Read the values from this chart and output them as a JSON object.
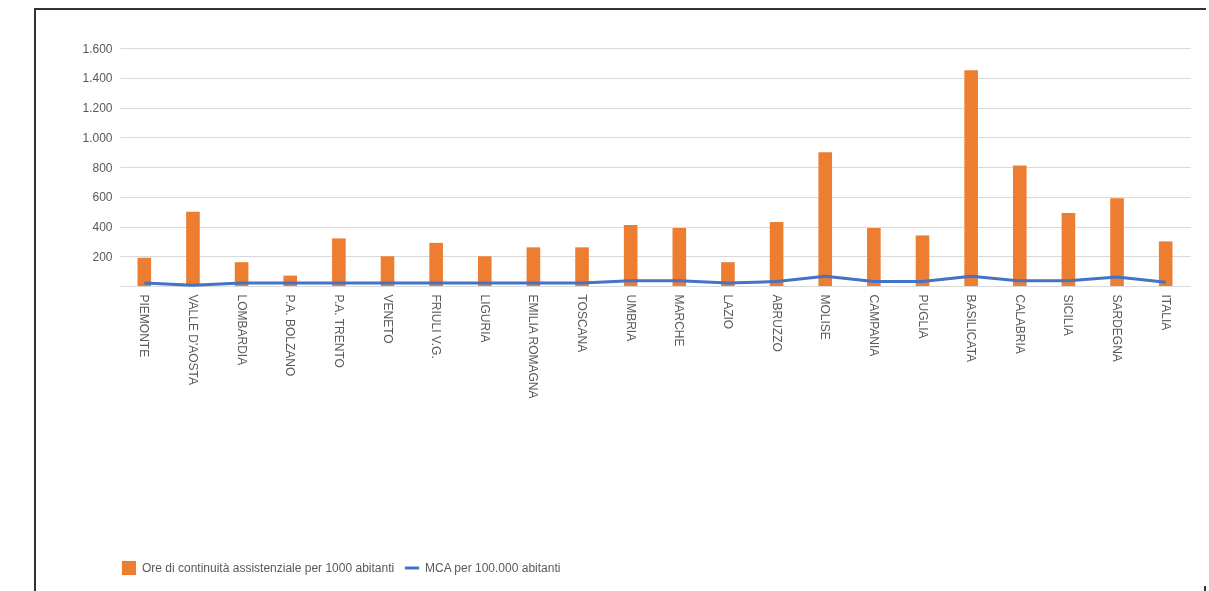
{
  "chart_data": {
    "type": "bar",
    "categories": [
      "PIEMONTE",
      "VALLE D'AOSTA",
      "LOMBARDIA",
      "P.A. BOLZANO",
      "P.A. TRENTO",
      "VENETO",
      "FRIULI V.G.",
      "LIGURIA",
      "EMILIA ROMAGNA",
      "TOSCANA",
      "UMBRIA",
      "MARCHE",
      "LAZIO",
      "ABRUZZO",
      "MOLISE",
      "CAMPANIA",
      "PUGLIA",
      "BASILICATA",
      "CALABRIA",
      "SICILIA",
      "SARDEGNA",
      "ITALIA"
    ],
    "series": [
      {
        "name": "Ore di continuità assistenziale per 1000 abitanti",
        "color": "#ed7d31",
        "values": [
          190,
          500,
          160,
          70,
          320,
          200,
          290,
          200,
          260,
          260,
          410,
          390,
          160,
          430,
          900,
          390,
          340,
          1450,
          810,
          490,
          590,
          300
        ]
      },
      {
        "name": "MCA per 100.000 abitanti",
        "color": "#4472c4",
        "type": "line",
        "values": [
          20,
          5,
          20,
          20,
          20,
          20,
          20,
          20,
          20,
          20,
          35,
          35,
          20,
          30,
          65,
          30,
          30,
          65,
          35,
          35,
          60,
          25
        ]
      }
    ],
    "ylim": [
      0,
      1600
    ],
    "yticks": [
      {
        "value": 200,
        "label": "200"
      },
      {
        "value": 400,
        "label": "400"
      },
      {
        "value": 600,
        "label": "600"
      },
      {
        "value": 800,
        "label": "800"
      },
      {
        "value": 1000,
        "label": "1.000"
      },
      {
        "value": 1200,
        "label": "1.200"
      },
      {
        "value": 1400,
        "label": "1.400"
      },
      {
        "value": 1600,
        "label": "1.600"
      }
    ],
    "grid": "y",
    "legend": "bottom",
    "marker": "none",
    "line_style": "solid"
  }
}
